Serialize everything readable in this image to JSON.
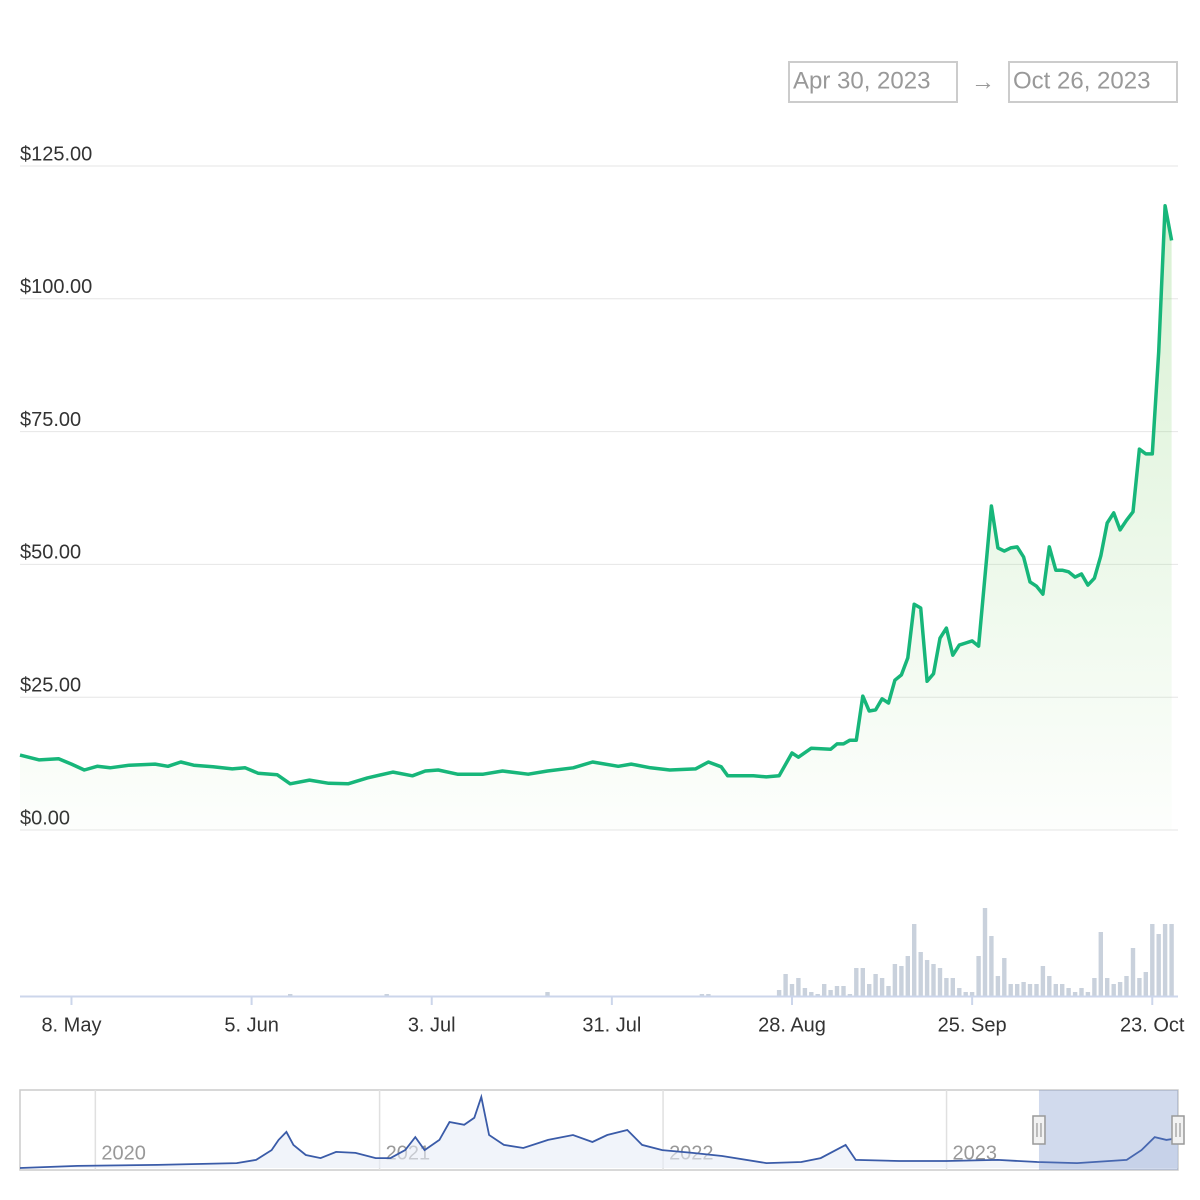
{
  "chart_data": {
    "type": "line",
    "range_from": "Apr 30, 2023",
    "range_arrow": "→",
    "range_to": "Oct 26, 2023",
    "color": "#17b67a",
    "xlim": [
      "2023-04-30",
      "2023-10-27"
    ],
    "xticks": [
      {
        "value": "2023-05-08",
        "label": "8. May"
      },
      {
        "value": "2023-06-05",
        "label": "5. Jun"
      },
      {
        "value": "2023-07-03",
        "label": "3. Jul"
      },
      {
        "value": "2023-07-31",
        "label": "31. Jul"
      },
      {
        "value": "2023-08-28",
        "label": "28. Aug"
      },
      {
        "value": "2023-09-25",
        "label": "25. Sep"
      },
      {
        "value": "2023-10-23",
        "label": "23. Oct"
      }
    ],
    "ylim": [
      0,
      125
    ],
    "yticks": [
      {
        "value": 0,
        "label": "$0.00"
      },
      {
        "value": 25,
        "label": "$25.00"
      },
      {
        "value": 50,
        "label": "$50.00"
      },
      {
        "value": 75,
        "label": "$75.00"
      },
      {
        "value": 100,
        "label": "$100.00"
      },
      {
        "value": 125,
        "label": "$125.00"
      }
    ],
    "grid": true,
    "x": [
      "2023-04-30",
      "2023-05-03",
      "2023-05-06",
      "2023-05-08",
      "2023-05-10",
      "2023-05-12",
      "2023-05-14",
      "2023-05-17",
      "2023-05-21",
      "2023-05-23",
      "2023-05-25",
      "2023-05-27",
      "2023-05-30",
      "2023-06-02",
      "2023-06-04",
      "2023-06-06",
      "2023-06-09",
      "2023-06-11",
      "2023-06-14",
      "2023-06-17",
      "2023-06-20",
      "2023-06-23",
      "2023-06-27",
      "2023-06-30",
      "2023-07-02",
      "2023-07-04",
      "2023-07-07",
      "2023-07-11",
      "2023-07-14",
      "2023-07-18",
      "2023-07-21",
      "2023-07-25",
      "2023-07-28",
      "2023-08-01",
      "2023-08-03",
      "2023-08-06",
      "2023-08-09",
      "2023-08-13",
      "2023-08-15",
      "2023-08-17",
      "2023-08-18",
      "2023-08-22",
      "2023-08-24",
      "2023-08-26",
      "2023-08-28",
      "2023-08-29",
      "2023-08-31",
      "2023-09-03",
      "2023-09-04",
      "2023-09-05",
      "2023-09-06",
      "2023-09-07",
      "2023-09-08",
      "2023-09-09",
      "2023-09-10",
      "2023-09-11",
      "2023-09-12",
      "2023-09-13",
      "2023-09-14",
      "2023-09-15",
      "2023-09-16",
      "2023-09-17",
      "2023-09-18",
      "2023-09-19",
      "2023-09-20",
      "2023-09-21",
      "2023-09-22",
      "2023-09-23",
      "2023-09-24",
      "2023-09-25",
      "2023-09-26",
      "2023-09-28",
      "2023-09-29",
      "2023-09-30",
      "2023-10-01",
      "2023-10-02",
      "2023-10-03",
      "2023-10-04",
      "2023-10-05",
      "2023-10-06",
      "2023-10-07",
      "2023-10-08",
      "2023-10-09",
      "2023-10-10",
      "2023-10-11",
      "2023-10-12",
      "2023-10-13",
      "2023-10-14",
      "2023-10-15",
      "2023-10-16",
      "2023-10-17",
      "2023-10-18",
      "2023-10-19",
      "2023-10-20",
      "2023-10-21",
      "2023-10-22",
      "2023-10-23",
      "2023-10-24",
      "2023-10-25",
      "2023-10-26"
    ],
    "values": [
      14.1,
      13.2,
      13.4,
      12.4,
      11.3,
      12.0,
      11.7,
      12.2,
      12.4,
      12.0,
      12.8,
      12.2,
      11.9,
      11.5,
      11.7,
      10.7,
      10.4,
      8.7,
      9.4,
      8.8,
      8.7,
      9.8,
      10.9,
      10.2,
      11.1,
      11.3,
      10.5,
      10.5,
      11.1,
      10.5,
      11.1,
      11.7,
      12.8,
      12.0,
      12.4,
      11.7,
      11.3,
      11.5,
      12.8,
      11.9,
      10.2,
      10.2,
      10.0,
      10.2,
      14.5,
      13.7,
      15.4,
      15.2,
      16.2,
      16.2,
      16.9,
      16.9,
      25.2,
      22.4,
      22.6,
      24.7,
      23.9,
      28.2,
      29.2,
      32.4,
      42.5,
      41.8,
      28.0,
      29.4,
      36.1,
      38.0,
      32.9,
      34.8,
      35.2,
      35.6,
      34.6,
      61.0,
      53.1,
      52.5,
      53.1,
      53.3,
      51.4,
      46.7,
      45.9,
      44.4,
      53.3,
      48.9,
      48.9,
      48.6,
      47.6,
      48.2,
      46.1,
      47.4,
      51.6,
      57.8,
      59.7,
      56.5,
      58.3,
      59.9,
      71.7,
      70.8,
      70.8,
      90.0,
      117.5,
      111.0
    ],
    "volume": {
      "type": "bar",
      "color": "#c9d1dc",
      "ylim": [
        0,
        100
      ],
      "x": [
        "2023-06-11",
        "2023-06-26",
        "2023-07-21",
        "2023-08-14",
        "2023-08-15",
        "2023-08-26",
        "2023-08-27",
        "2023-08-28",
        "2023-08-29",
        "2023-08-30",
        "2023-08-31",
        "2023-09-01",
        "2023-09-02",
        "2023-09-03",
        "2023-09-04",
        "2023-09-05",
        "2023-09-06",
        "2023-09-07",
        "2023-09-08",
        "2023-09-09",
        "2023-09-10",
        "2023-09-11",
        "2023-09-12",
        "2023-09-13",
        "2023-09-14",
        "2023-09-15",
        "2023-09-16",
        "2023-09-17",
        "2023-09-18",
        "2023-09-19",
        "2023-09-20",
        "2023-09-21",
        "2023-09-22",
        "2023-09-23",
        "2023-09-24",
        "2023-09-25",
        "2023-09-26",
        "2023-09-27",
        "2023-09-28",
        "2023-09-29",
        "2023-09-30",
        "2023-10-01",
        "2023-10-02",
        "2023-10-03",
        "2023-10-04",
        "2023-10-05",
        "2023-10-06",
        "2023-10-07",
        "2023-10-08",
        "2023-10-09",
        "2023-10-10",
        "2023-10-11",
        "2023-10-12",
        "2023-10-13",
        "2023-10-14",
        "2023-10-15",
        "2023-10-16",
        "2023-10-17",
        "2023-10-18",
        "2023-10-19",
        "2023-10-20",
        "2023-10-21",
        "2023-10-22",
        "2023-10-23",
        "2023-10-24",
        "2023-10-25",
        "2023-10-26"
      ],
      "values": [
        2,
        2,
        4,
        2,
        2,
        6,
        22,
        12,
        18,
        8,
        4,
        2,
        12,
        6,
        10,
        10,
        2,
        28,
        28,
        12,
        22,
        18,
        10,
        32,
        30,
        40,
        72,
        44,
        36,
        32,
        28,
        18,
        18,
        8,
        4,
        4,
        40,
        88,
        60,
        20,
        38,
        12,
        12,
        14,
        12,
        12,
        30,
        20,
        12,
        12,
        8,
        4,
        8,
        4,
        18,
        64,
        18,
        12,
        14,
        20,
        48,
        18,
        24,
        72,
        62,
        72,
        72
      ]
    },
    "navigator": {
      "type": "area",
      "color": "#3a5ba8",
      "xlim": [
        "2019-09-26",
        "2023-10-26"
      ],
      "ylim": [
        0,
        300
      ],
      "xticks": [
        {
          "value": "2020-01-01",
          "label": "2020"
        },
        {
          "value": "2021-01-01",
          "label": "2021"
        },
        {
          "value": "2022-01-01",
          "label": "2022"
        },
        {
          "value": "2023-01-01",
          "label": "2023"
        }
      ],
      "x": [
        "2019-09-26",
        "2019-12-09",
        "2020-03-21",
        "2020-07-01",
        "2020-07-26",
        "2020-08-15",
        "2020-08-24",
        "2020-09-03",
        "2020-09-12",
        "2020-09-28",
        "2020-10-17",
        "2020-11-06",
        "2020-12-01",
        "2020-12-27",
        "2021-01-15",
        "2021-02-03",
        "2021-02-16",
        "2021-02-28",
        "2021-03-19",
        "2021-04-01",
        "2021-04-20",
        "2021-05-03",
        "2021-05-12",
        "2021-05-22",
        "2021-06-10",
        "2021-07-05",
        "2021-08-06",
        "2021-09-07",
        "2021-10-02",
        "2021-10-21",
        "2021-11-16",
        "2021-12-05",
        "2021-12-31",
        "2022-02-08",
        "2022-03-18",
        "2022-05-14",
        "2022-06-28",
        "2022-07-23",
        "2022-08-24",
        "2022-09-06",
        "2022-11-01",
        "2023-01-01",
        "2023-03-08",
        "2023-04-28",
        "2023-06-18",
        "2023-08-21",
        "2023-09-09",
        "2023-09-26",
        "2023-10-11",
        "2023-10-26"
      ],
      "values": [
        0,
        8,
        12,
        19,
        31,
        69,
        108,
        139,
        89,
        50,
        38,
        62,
        58,
        38,
        38,
        69,
        119,
        69,
        108,
        177,
        166,
        193,
        273,
        127,
        89,
        77,
        108,
        127,
        100,
        127,
        146,
        89,
        69,
        58,
        46,
        19,
        23,
        38,
        89,
        31,
        27,
        27,
        31,
        23,
        19,
        31,
        69,
        119,
        108,
        115
      ]
    }
  }
}
